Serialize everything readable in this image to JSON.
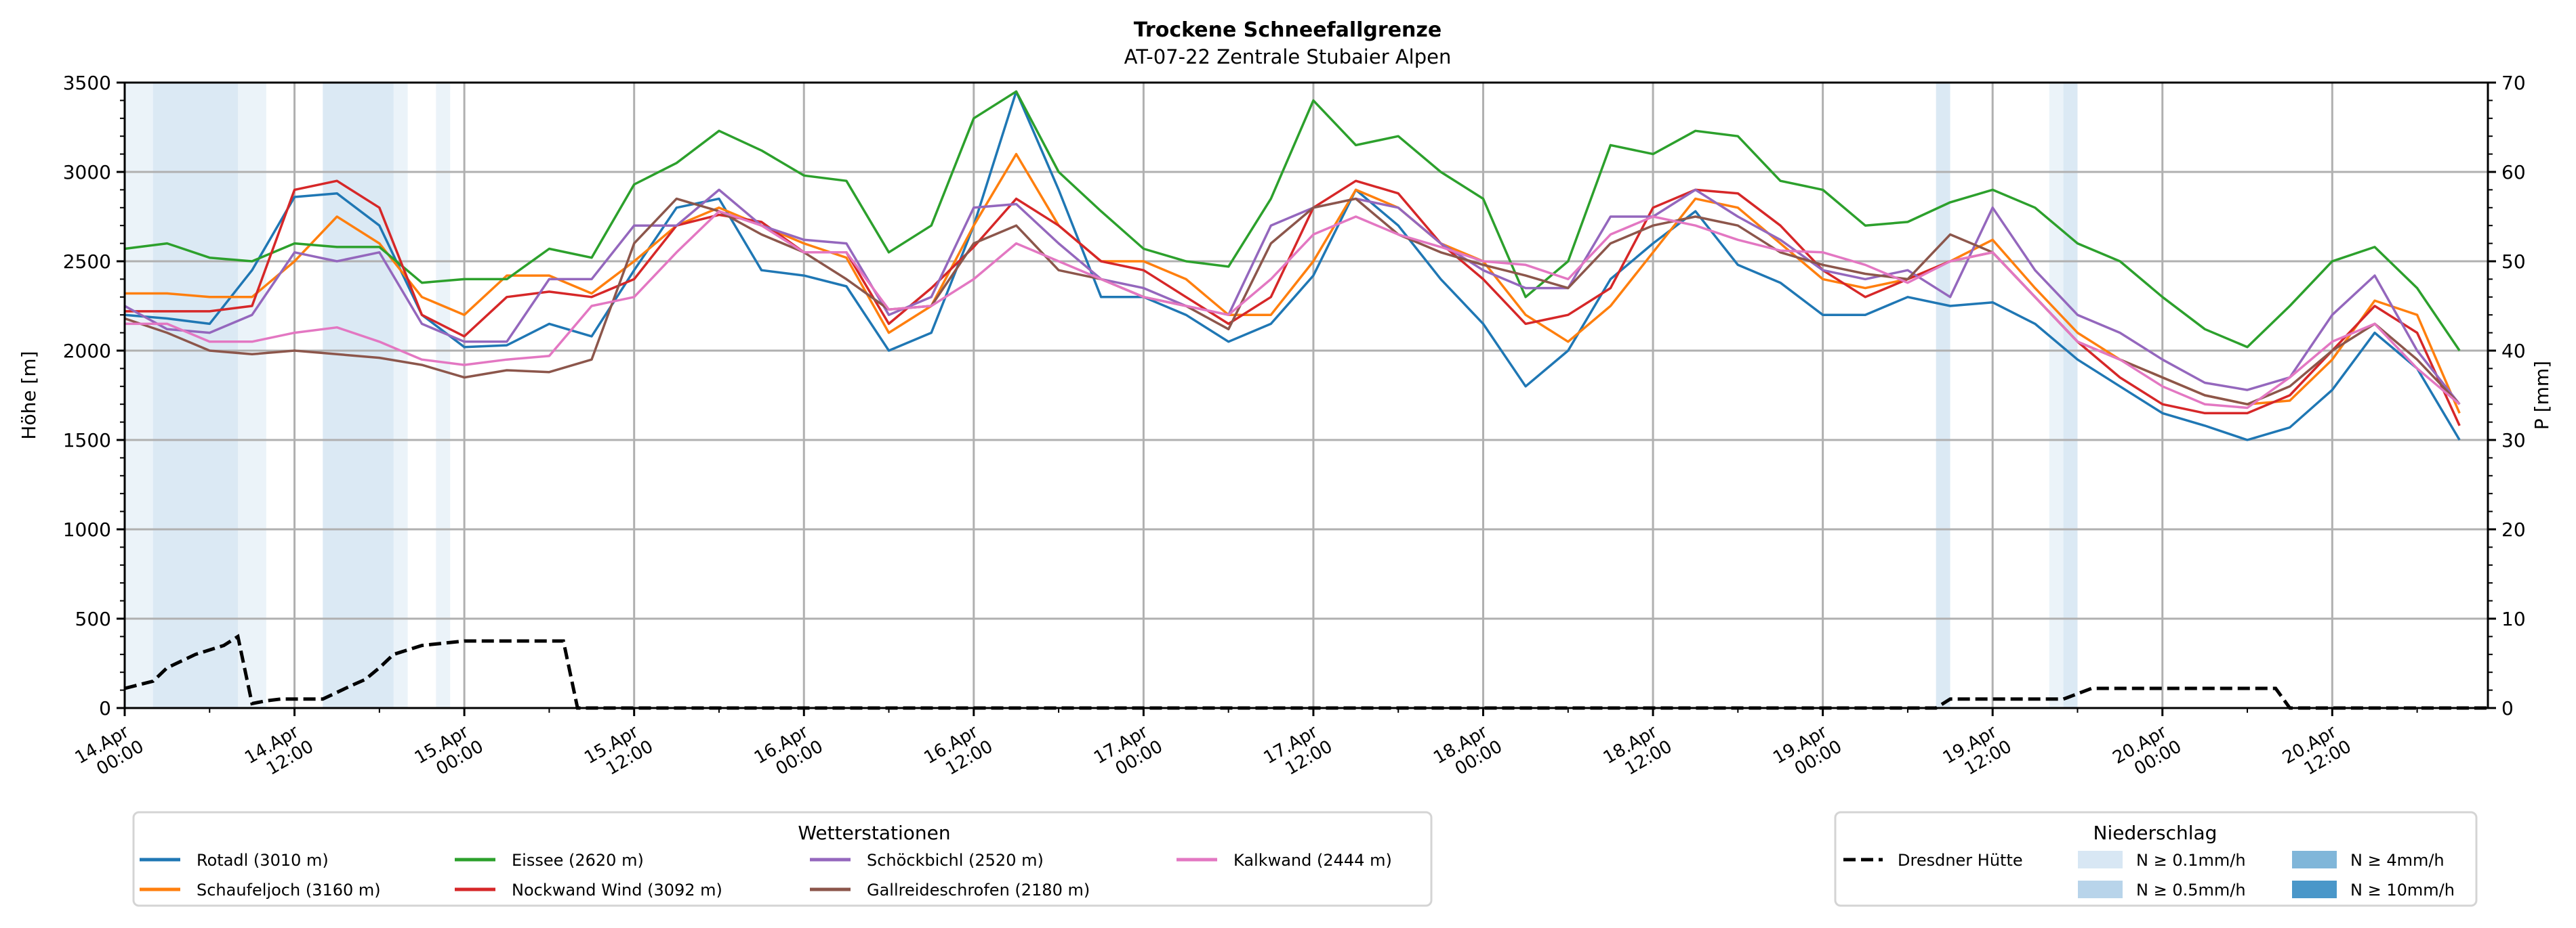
{
  "chart_data": {
    "type": "line",
    "title": "Trockene Schneefallgrenze",
    "subtitle": "AT-07-22 Zentrale Stubaier Alpen",
    "ylabel": "Höhe [m]",
    "ylabel_right": "P [mm]",
    "ylim": [
      0,
      3500
    ],
    "ylim_right": [
      0,
      70
    ],
    "xlim_hours": [
      0,
      167
    ],
    "x_start": "14.Apr 00:00",
    "x_step_hours": 3,
    "grid": true,
    "y_ticks": [
      "0",
      "500",
      "1000",
      "1500",
      "2000",
      "2500",
      "3000",
      "3500"
    ],
    "y_ticks_right": [
      "0",
      "10",
      "20",
      "30",
      "40",
      "50",
      "60",
      "70"
    ],
    "x_ticks": [
      {
        "day": "14.Apr",
        "time": "00:00",
        "hour": 0
      },
      {
        "day": "14.Apr",
        "time": "12:00",
        "hour": 12
      },
      {
        "day": "15.Apr",
        "time": "00:00",
        "hour": 24
      },
      {
        "day": "15.Apr",
        "time": "12:00",
        "hour": 36
      },
      {
        "day": "16.Apr",
        "time": "00:00",
        "hour": 48
      },
      {
        "day": "16.Apr",
        "time": "12:00",
        "hour": 60
      },
      {
        "day": "17.Apr",
        "time": "00:00",
        "hour": 72
      },
      {
        "day": "17.Apr",
        "time": "12:00",
        "hour": 84
      },
      {
        "day": "18.Apr",
        "time": "00:00",
        "hour": 96
      },
      {
        "day": "18.Apr",
        "time": "12:00",
        "hour": 108
      },
      {
        "day": "19.Apr",
        "time": "00:00",
        "hour": 120
      },
      {
        "day": "19.Apr",
        "time": "12:00",
        "hour": 132
      },
      {
        "day": "20.Apr",
        "time": "00:00",
        "hour": 144
      },
      {
        "day": "20.Apr",
        "time": "12:00",
        "hour": 156
      }
    ],
    "series": [
      {
        "name": "Rotadl (3010 m)",
        "color": "#1f77b4",
        "values": [
          2200,
          2180,
          2150,
          2450,
          2860,
          2880,
          2700,
          2200,
          2020,
          2030,
          2150,
          2080,
          2450,
          2800,
          2850,
          2450,
          2420,
          2360,
          2000,
          2100,
          2700,
          3450,
          2900,
          2300,
          2300,
          2200,
          2050,
          2150,
          2420,
          2900,
          2700,
          2400,
          2150,
          1800,
          2000,
          2400,
          2600,
          2780,
          2480,
          2380,
          2200,
          2200,
          2300,
          2250,
          2270,
          2150,
          1950,
          1800,
          1650,
          1580,
          1500,
          1570,
          1780,
          2100,
          1900,
          1500
        ]
      },
      {
        "name": "Schaufeljoch (3160 m)",
        "color": "#ff7f0e",
        "values": [
          2320,
          2320,
          2300,
          2300,
          2500,
          2750,
          2600,
          2300,
          2200,
          2420,
          2420,
          2320,
          2500,
          2700,
          2800,
          2700,
          2600,
          2520,
          2100,
          2250,
          2700,
          3100,
          2700,
          2500,
          2500,
          2400,
          2200,
          2200,
          2500,
          2900,
          2800,
          2600,
          2500,
          2200,
          2050,
          2250,
          2550,
          2850,
          2800,
          2600,
          2400,
          2350,
          2400,
          2500,
          2620,
          2350,
          2100,
          1950,
          1850,
          1750,
          1700,
          1720,
          1950,
          2280,
          2200,
          1650
        ]
      },
      {
        "name": "Eissee (2620 m)",
        "color": "#2ca02c",
        "values": [
          2570,
          2600,
          2520,
          2500,
          2600,
          2580,
          2580,
          2380,
          2400,
          2400,
          2570,
          2520,
          2930,
          3050,
          3230,
          3120,
          2980,
          2950,
          2550,
          2700,
          3300,
          3450,
          3000,
          2780,
          2570,
          2500,
          2470,
          2850,
          3400,
          3150,
          3200,
          3000,
          2850,
          2300,
          2500,
          3150,
          3100,
          3230,
          3200,
          2950,
          2900,
          2700,
          2720,
          2830,
          2900,
          2800,
          2600,
          2500,
          2300,
          2120,
          2020,
          2250,
          2500,
          2580,
          2350,
          2000
        ]
      },
      {
        "name": "Nockwand Wind (3092 m)",
        "color": "#d62728",
        "values": [
          2220,
          2220,
          2220,
          2250,
          2900,
          2950,
          2800,
          2200,
          2080,
          2300,
          2330,
          2300,
          2400,
          2700,
          2760,
          2720,
          2550,
          2550,
          2150,
          2350,
          2580,
          2850,
          2700,
          2500,
          2450,
          2300,
          2150,
          2300,
          2800,
          2950,
          2880,
          2600,
          2400,
          2150,
          2200,
          2350,
          2800,
          2900,
          2880,
          2700,
          2450,
          2300,
          2400,
          2500,
          2550,
          2300,
          2050,
          1850,
          1700,
          1650,
          1650,
          1750,
          2000,
          2250,
          2100,
          1580
        ]
      },
      {
        "name": "Schöckbichl (2520 m)",
        "color": "#9467bd",
        "values": [
          2250,
          2120,
          2100,
          2200,
          2550,
          2500,
          2550,
          2150,
          2050,
          2050,
          2400,
          2400,
          2700,
          2700,
          2900,
          2700,
          2620,
          2600,
          2200,
          2300,
          2800,
          2820,
          2600,
          2400,
          2350,
          2250,
          2200,
          2700,
          2800,
          2850,
          2800,
          2600,
          2450,
          2350,
          2350,
          2750,
          2750,
          2900,
          2750,
          2620,
          2450,
          2400,
          2450,
          2300,
          2800,
          2450,
          2200,
          2100,
          1950,
          1820,
          1780,
          1850,
          2200,
          2420,
          2000,
          1700
        ]
      },
      {
        "name": "Gallreideschrofen (2180 m)",
        "color": "#8c564b",
        "values": [
          2180,
          2100,
          2000,
          1980,
          2000,
          1980,
          1960,
          1920,
          1850,
          1890,
          1880,
          1950,
          2600,
          2850,
          2780,
          2650,
          2550,
          2400,
          2230,
          2250,
          2600,
          2700,
          2450,
          2400,
          2300,
          2250,
          2120,
          2600,
          2800,
          2850,
          2650,
          2550,
          2480,
          2420,
          2350,
          2600,
          2700,
          2750,
          2700,
          2550,
          2480,
          2430,
          2400,
          2650,
          2550,
          2300,
          2050,
          1950,
          1850,
          1750,
          1700,
          1800,
          2000,
          2150,
          1950,
          1700
        ]
      },
      {
        "name": "Kalkwand (2444 m)",
        "color": "#e377c2",
        "values": [
          2150,
          2150,
          2050,
          2050,
          2100,
          2130,
          2050,
          1950,
          1920,
          1950,
          1970,
          2250,
          2300,
          2550,
          2780,
          2700,
          2550,
          2550,
          2230,
          2250,
          2400,
          2600,
          2500,
          2400,
          2300,
          2250,
          2200,
          2400,
          2650,
          2750,
          2650,
          2580,
          2500,
          2480,
          2400,
          2650,
          2750,
          2700,
          2620,
          2560,
          2550,
          2480,
          2380,
          2500,
          2550,
          2300,
          2050,
          1950,
          1800,
          1700,
          1680,
          1850,
          2050,
          2150,
          1900,
          1700
        ]
      }
    ],
    "precipitation": {
      "name": "Dresdner Hütte",
      "color": "#000000",
      "points_hour_mm": [
        [
          0,
          2.2
        ],
        [
          2,
          3
        ],
        [
          3,
          4.5
        ],
        [
          5,
          6
        ],
        [
          7,
          7
        ],
        [
          8,
          8
        ],
        [
          9,
          0.5
        ],
        [
          10,
          0.8
        ],
        [
          11,
          1
        ],
        [
          14,
          1
        ],
        [
          16,
          2.5
        ],
        [
          17,
          3.2
        ],
        [
          18,
          4.5
        ],
        [
          19,
          6
        ],
        [
          20,
          6.5
        ],
        [
          21,
          7
        ],
        [
          24,
          7.5
        ],
        [
          31,
          7.5
        ],
        [
          32,
          0
        ],
        [
          128,
          0
        ],
        [
          129,
          1
        ],
        [
          137,
          1
        ],
        [
          139,
          2.2
        ],
        [
          152,
          2.2
        ],
        [
          153,
          0
        ],
        [
          167,
          0
        ]
      ]
    },
    "precip_bands": [
      {
        "from_hour": 0,
        "to_hour": 2,
        "level": "0.1"
      },
      {
        "from_hour": 2,
        "to_hour": 8,
        "level": "0.5"
      },
      {
        "from_hour": 8,
        "to_hour": 10,
        "level": "0.1"
      },
      {
        "from_hour": 14,
        "to_hour": 19,
        "level": "0.5"
      },
      {
        "from_hour": 19,
        "to_hour": 20,
        "level": "0.1"
      },
      {
        "from_hour": 22,
        "to_hour": 23,
        "level": "0.1"
      },
      {
        "from_hour": 128,
        "to_hour": 129,
        "level": "0.5"
      },
      {
        "from_hour": 136,
        "to_hour": 137,
        "level": "0.1"
      },
      {
        "from_hour": 137,
        "to_hour": 138,
        "level": "0.5"
      }
    ],
    "legend_stations": {
      "title": "Wetterstationen",
      "placement": "bottom-left"
    },
    "legend_precip": {
      "title": "Niederschlag",
      "placement": "bottom-right",
      "line_label": "Dresdner Hütte",
      "levels": [
        {
          "level": "0.1",
          "label": "N ≥ 0.1mm/h",
          "color": "#d8e7f4"
        },
        {
          "level": "0.5",
          "label": "N ≥ 0.5mm/h",
          "color": "#b8d4ea"
        },
        {
          "level": "4",
          "label": "N ≥ 4mm/h",
          "color": "#80b6d9"
        },
        {
          "level": "10",
          "label": "N ≥ 10mm/h",
          "color": "#4a97c9"
        }
      ]
    }
  }
}
